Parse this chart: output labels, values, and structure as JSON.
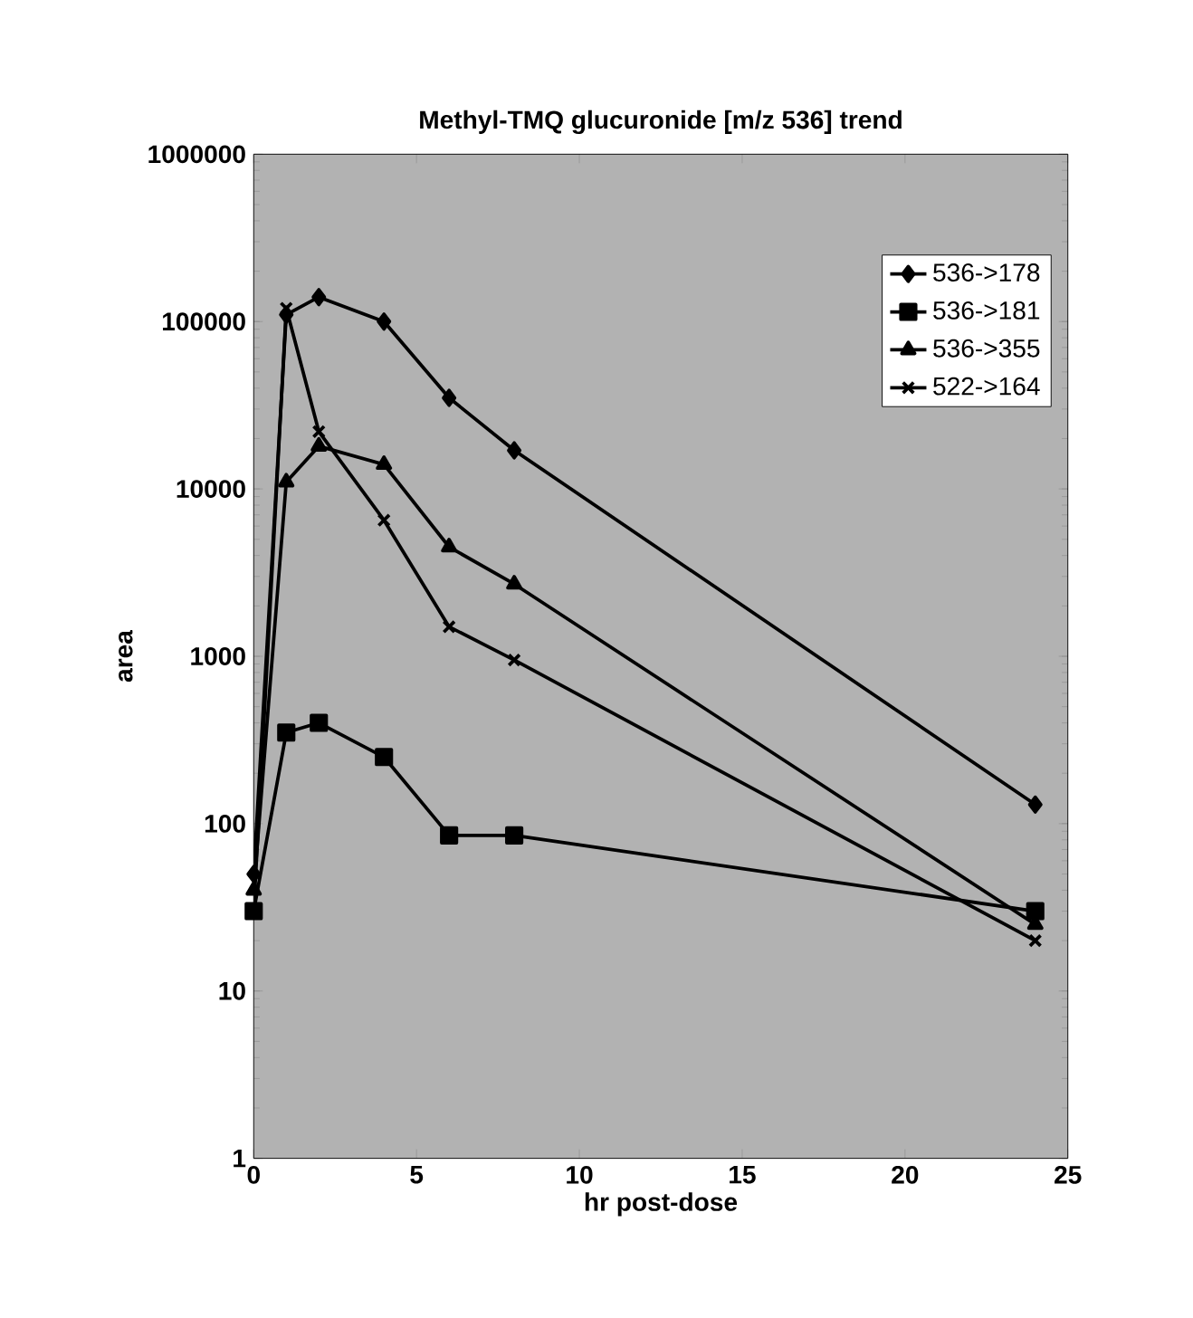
{
  "chart_data": {
    "type": "line",
    "title": "Methyl-TMQ glucuronide [m/z 536] trend",
    "xlabel": "hr post-dose",
    "ylabel": "area",
    "x": [
      0,
      1,
      2,
      4,
      6,
      8,
      24
    ],
    "series": [
      {
        "name": "536->178",
        "color": "#000000",
        "marker": "diamond",
        "values": [
          50,
          110000,
          140000,
          100000,
          35000,
          17000,
          130
        ]
      },
      {
        "name": "536->181",
        "color": "#000000",
        "marker": "square",
        "values": [
          30,
          350,
          400,
          250,
          85,
          85,
          30
        ]
      },
      {
        "name": "536->355",
        "color": "#000000",
        "marker": "triangle",
        "values": [
          40,
          11000,
          18000,
          14000,
          4500,
          2700,
          25
        ]
      },
      {
        "name": "522->164",
        "color": "#000000",
        "marker": "cross",
        "values": [
          30,
          120000,
          22000,
          6500,
          1500,
          950,
          20
        ]
      }
    ],
    "log": "y",
    "xlim": [
      0,
      25
    ],
    "ylim": [
      1,
      1000000
    ],
    "xticks": [
      0,
      5,
      10,
      15,
      20,
      25
    ],
    "yticks": [
      1,
      10,
      100,
      1000,
      10000,
      100000,
      1000000
    ],
    "legend": "top right",
    "grid": false,
    "line_style": "solid"
  }
}
